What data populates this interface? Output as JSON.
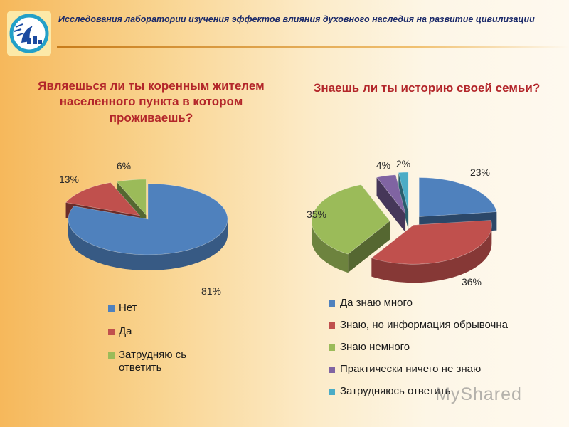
{
  "header": {
    "title": "Исследования лаборатории изучения эффектов влияния духовного наследия на развитие цивилизации"
  },
  "watermark": {
    "text": "MyShared"
  },
  "colors": {
    "blue": "#4f81bd",
    "red": "#c0504d",
    "green": "#9bbb59",
    "purple": "#8064a2",
    "teal": "#4bacc6"
  },
  "chart_data": [
    {
      "type": "pie",
      "title": "Являешься ли ты коренным жителем населенного пункта в котором проживаешь?",
      "categories": [
        "Нет",
        "Да",
        "Затрудняю сь ответить"
      ],
      "values": [
        81,
        13,
        6
      ],
      "value_labels": [
        "81%",
        "13%",
        "6%"
      ],
      "colors": [
        "#4f81bd",
        "#c0504d",
        "#9bbb59"
      ],
      "legend_placement": "bottom",
      "style": "3d-exploded"
    },
    {
      "type": "pie",
      "title": "Знаешь ли ты историю своей семьи?",
      "categories": [
        "Да знаю много",
        "Знаю, но информация обрывочна",
        "Знаю немного",
        "Практически ничего не знаю",
        "Затрудняюсь ответить"
      ],
      "values": [
        23,
        36,
        35,
        4,
        2
      ],
      "value_labels": [
        "23%",
        "36%",
        "35%",
        "4%",
        "2%"
      ],
      "colors": [
        "#4f81bd",
        "#c0504d",
        "#9bbb59",
        "#8064a2",
        "#4bacc6"
      ],
      "legend_placement": "bottom",
      "style": "3d-exploded"
    }
  ]
}
